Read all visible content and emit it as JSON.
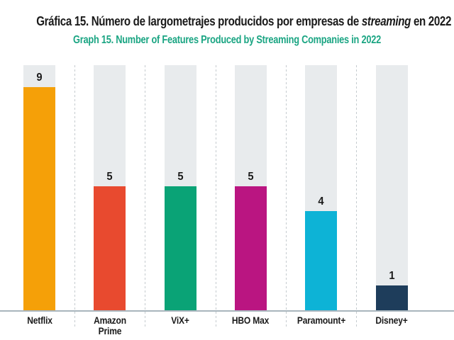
{
  "title": {
    "line1_prefix": "Gráfica 15. Número de largometrajes producidos por empresas de ",
    "line1_italic": "streaming",
    "line1_suffix": " en 2022",
    "line2": "Graph 15. Number of Features Produced by Streaming Companies in 2022"
  },
  "chart_data": {
    "type": "bar",
    "title": "Gráfica 15. Número de largometrajes producidos por empresas de streaming en 2022",
    "subtitle": "Graph 15. Number of Features Produced by Streaming Companies in 2022",
    "categories": [
      "Netflix",
      "Amazon Prime",
      "ViX+",
      "HBO Max",
      "Paramount+",
      "Disney+"
    ],
    "values": [
      9,
      5,
      5,
      5,
      4,
      1
    ],
    "bar_colors": [
      "#f5a008",
      "#e84a2f",
      "#0aa376",
      "#ba1581",
      "#0db3d6",
      "#1e3d5b"
    ],
    "xlabel": "",
    "ylabel": "",
    "ylim": [
      0,
      9.9
    ],
    "legend": "none",
    "grid": "vertical dashed separators between columns",
    "value_labels": "above each bar",
    "track_color": "#e8ebed",
    "baseline_color": "#a9b5bd",
    "separator_color": "#c5cbcf",
    "title_color": "#1a1a1a",
    "subtitle_color": "#1ba583",
    "value_label_color": "#1a1a1a"
  }
}
